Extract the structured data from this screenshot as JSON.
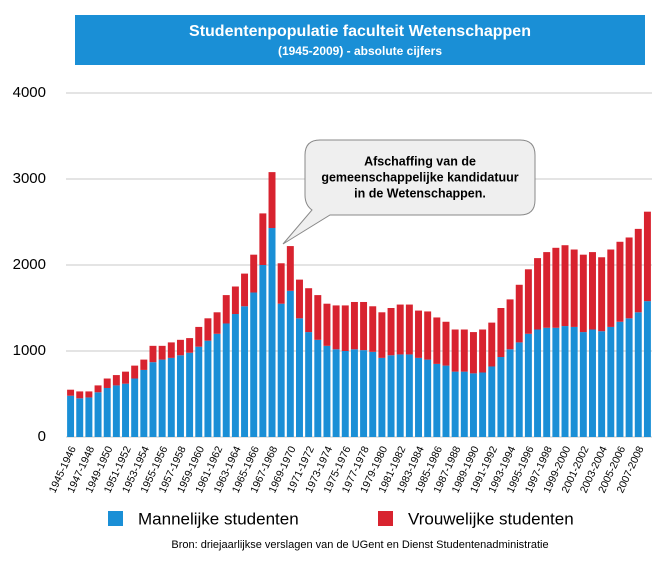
{
  "chart_data": {
    "type": "stacked_bar",
    "title": "Studentenpopulatie faculteit Wetenschappen",
    "subtitle": "(1945-2009) - absolute cijfers",
    "annotation": [
      "Afschaffing van de",
      "gemeenschappelijke kandidatuur",
      "in de Wetenschappen."
    ],
    "source": "Bron: driejaarlijkse verslagen van de UGent en Dienst Studentenadministratie",
    "categories": [
      "1945-1946",
      null,
      "1947-1948",
      null,
      "1949-1950",
      null,
      "1951-1952",
      null,
      "1953-1954",
      null,
      "1955-1956",
      null,
      "1957-1958",
      null,
      "1959-1960",
      null,
      "1961-1962",
      null,
      "1963-1964",
      null,
      "1965-1966",
      null,
      "1967-1968",
      null,
      "1969-1970",
      null,
      "1971-1972",
      null,
      "1973-1974",
      null,
      "1975-1976",
      null,
      "1977-1978",
      null,
      "1979-1980",
      null,
      "1981-1982",
      null,
      "1983-1984",
      null,
      "1985-1986",
      null,
      "1987-1988",
      null,
      "1989-1990",
      null,
      "1991-1992",
      null,
      "1993-1994",
      null,
      "1995-1996",
      null,
      "1997-1998",
      null,
      "1999-2000",
      null,
      "2001-2002",
      null,
      "2003-2004",
      null,
      "2005-2006",
      null,
      "2007-2008",
      null
    ],
    "series": [
      {
        "name": "Mannelijke studenten",
        "color": "#1a8fd6",
        "values": [
          480,
          450,
          460,
          520,
          570,
          600,
          620,
          680,
          780,
          870,
          900,
          920,
          950,
          980,
          1050,
          1120,
          1200,
          1320,
          1430,
          1520,
          1680,
          2000,
          2430,
          1550,
          1700,
          1380,
          1220,
          1130,
          1060,
          1020,
          1000,
          1020,
          1010,
          990,
          920,
          950,
          960,
          960,
          920,
          900,
          850,
          830,
          760,
          760,
          740,
          750,
          820,
          930,
          1020,
          1100,
          1200,
          1250,
          1270,
          1270,
          1290,
          1280,
          1220,
          1250,
          1230,
          1280,
          1340,
          1380,
          1450,
          1580
        ]
      },
      {
        "name": "Vrouwelijke studenten",
        "color": "#d8232f",
        "values": [
          70,
          80,
          70,
          80,
          110,
          120,
          140,
          150,
          120,
          190,
          160,
          180,
          180,
          170,
          230,
          260,
          250,
          330,
          320,
          380,
          440,
          600,
          650,
          470,
          520,
          450,
          510,
          520,
          490,
          510,
          530,
          550,
          560,
          530,
          530,
          550,
          580,
          580,
          550,
          560,
          540,
          510,
          490,
          490,
          480,
          500,
          510,
          570,
          580,
          670,
          750,
          830,
          880,
          930,
          940,
          900,
          900,
          900,
          860,
          900,
          930,
          940,
          970,
          1040
        ]
      }
    ],
    "ylim": [
      0,
      4000
    ],
    "yticks": [
      0,
      1000,
      2000,
      3000,
      4000
    ],
    "grid": true
  }
}
